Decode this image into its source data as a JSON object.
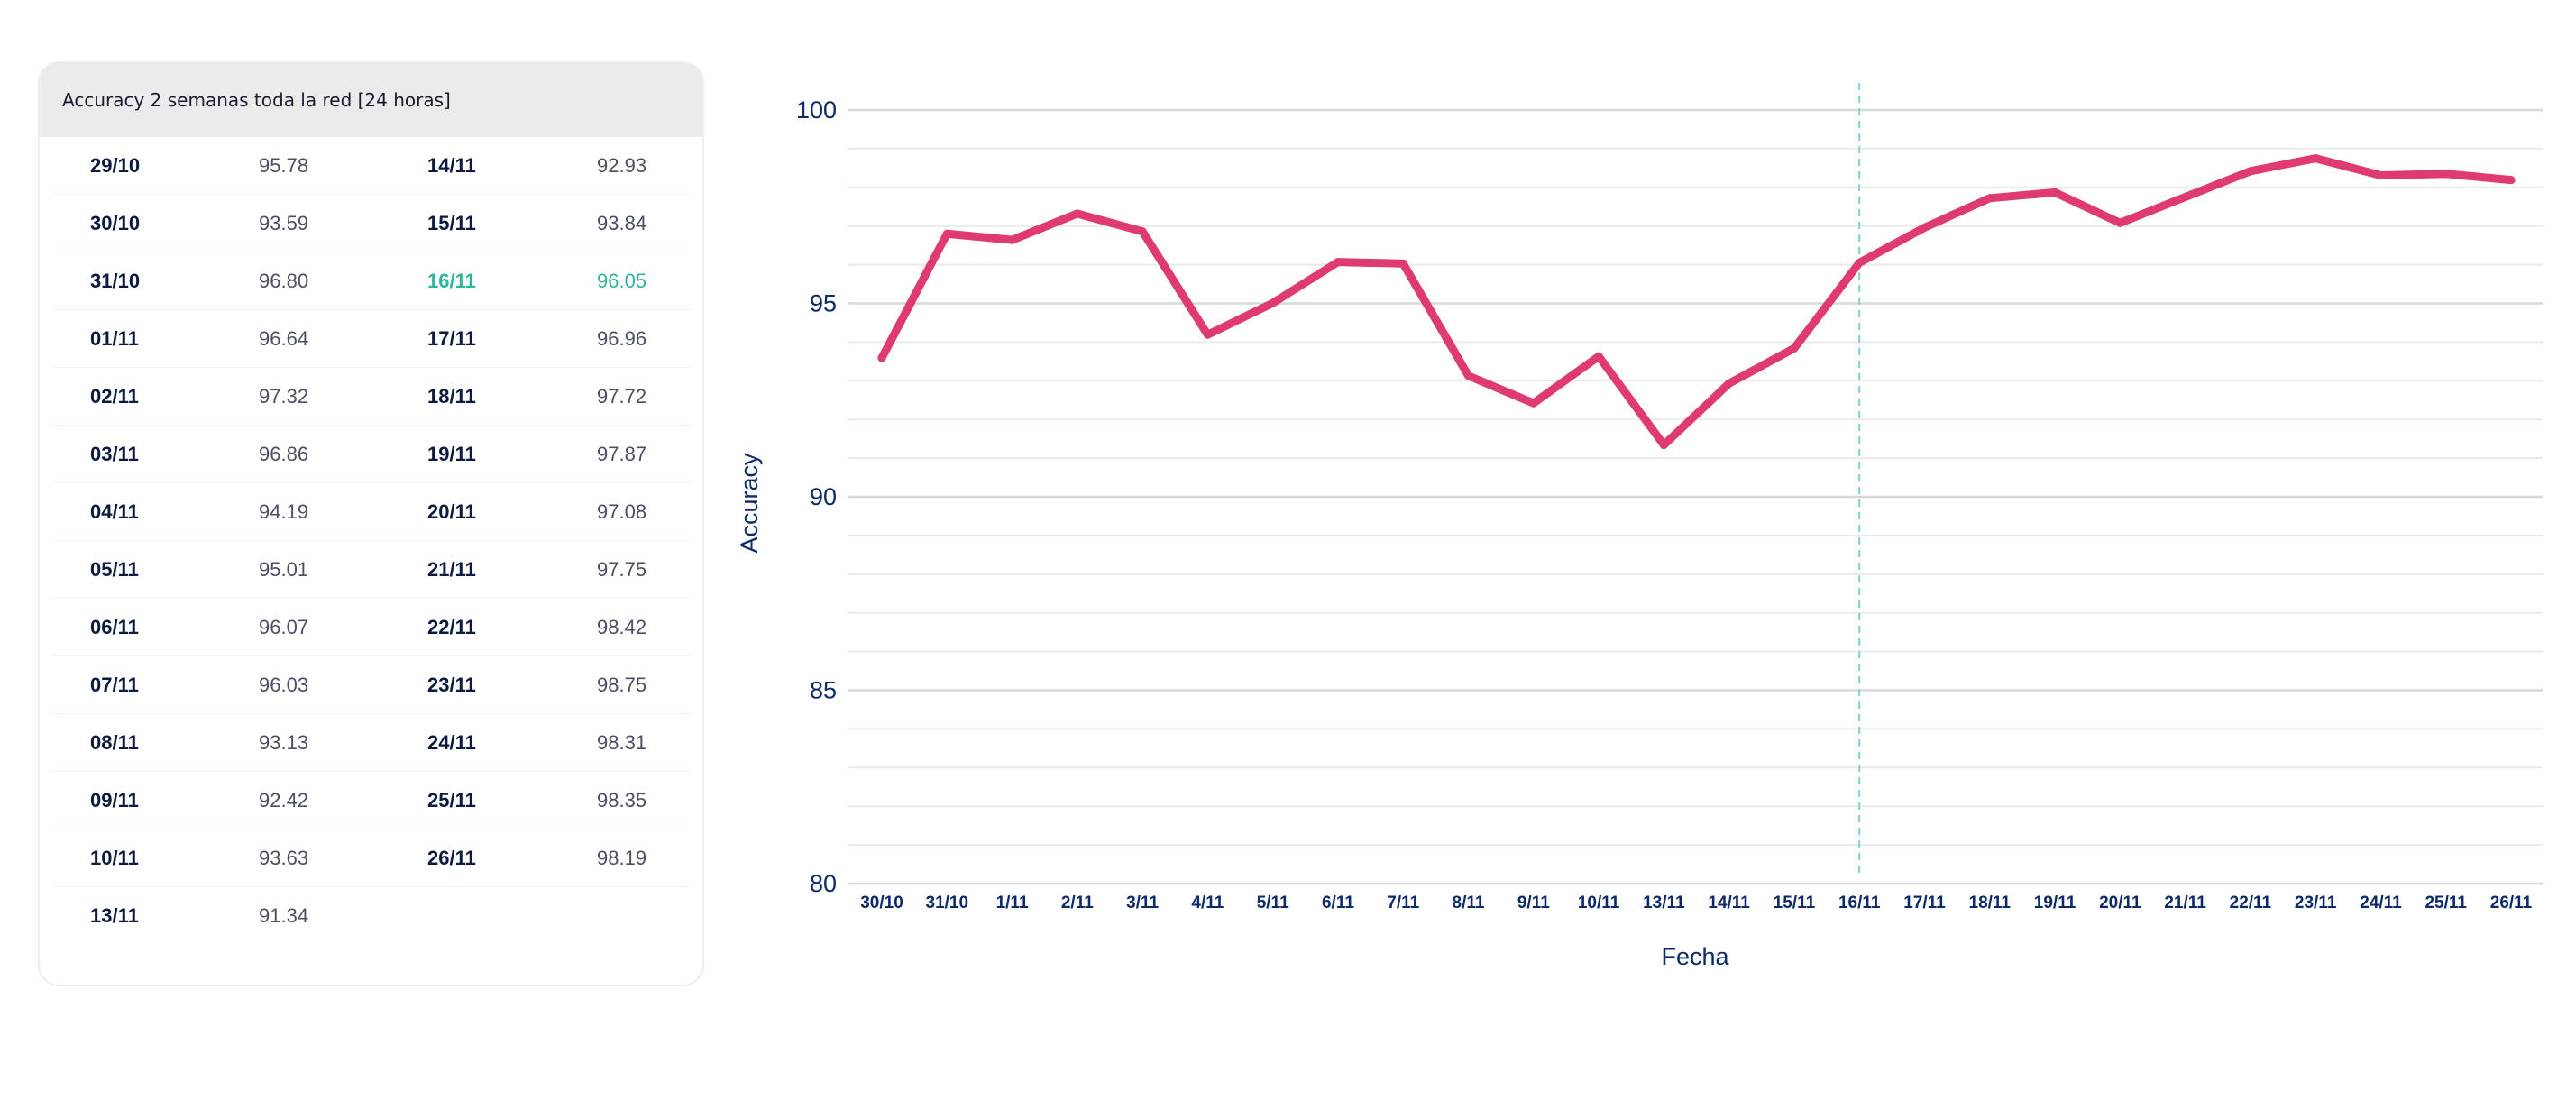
{
  "table": {
    "title": "Accuracy 2 semanas toda la red [24 horas]",
    "highlight_date": "16/11",
    "rows": [
      [
        {
          "date": "29/10",
          "value": "95.78"
        },
        {
          "date": "14/11",
          "value": "92.93"
        }
      ],
      [
        {
          "date": "30/10",
          "value": "93.59"
        },
        {
          "date": "15/11",
          "value": "93.84"
        }
      ],
      [
        {
          "date": "31/10",
          "value": "96.80"
        },
        {
          "date": "16/11",
          "value": "96.05"
        }
      ],
      [
        {
          "date": "01/11",
          "value": "96.64"
        },
        {
          "date": "17/11",
          "value": "96.96"
        }
      ],
      [
        {
          "date": "02/11",
          "value": "97.32"
        },
        {
          "date": "18/11",
          "value": "97.72"
        }
      ],
      [
        {
          "date": "03/11",
          "value": "96.86"
        },
        {
          "date": "19/11",
          "value": "97.87"
        }
      ],
      [
        {
          "date": "04/11",
          "value": "94.19"
        },
        {
          "date": "20/11",
          "value": "97.08"
        }
      ],
      [
        {
          "date": "05/11",
          "value": "95.01"
        },
        {
          "date": "21/11",
          "value": "97.75"
        }
      ],
      [
        {
          "date": "06/11",
          "value": "96.07"
        },
        {
          "date": "22/11",
          "value": "98.42"
        }
      ],
      [
        {
          "date": "07/11",
          "value": "96.03"
        },
        {
          "date": "23/11",
          "value": "98.75"
        }
      ],
      [
        {
          "date": "08/11",
          "value": "93.13"
        },
        {
          "date": "24/11",
          "value": "98.31"
        }
      ],
      [
        {
          "date": "09/11",
          "value": "92.42"
        },
        {
          "date": "25/11",
          "value": "98.35"
        }
      ],
      [
        {
          "date": "10/11",
          "value": "93.63"
        },
        {
          "date": "26/11",
          "value": "98.19"
        }
      ],
      [
        {
          "date": "13/11",
          "value": "91.34"
        },
        {
          "date": "",
          "value": ""
        }
      ]
    ]
  },
  "chart_data": {
    "type": "line",
    "xlabel": "Fecha",
    "ylabel": "Accuracy",
    "ylim": [
      80,
      100
    ],
    "yticks": [
      80,
      85,
      90,
      95,
      100
    ],
    "grid": true,
    "x": [
      "30/10",
      "31/10",
      "1/11",
      "2/11",
      "3/11",
      "4/11",
      "5/11",
      "6/11",
      "7/11",
      "8/11",
      "9/11",
      "10/11",
      "13/11",
      "14/11",
      "15/11",
      "16/11",
      "17/11",
      "18/11",
      "19/11",
      "20/11",
      "21/11",
      "22/11",
      "23/11",
      "24/11",
      "25/11",
      "26/11"
    ],
    "values": [
      93.59,
      96.8,
      96.64,
      97.32,
      96.86,
      94.19,
      95.01,
      96.07,
      96.03,
      93.13,
      92.42,
      93.63,
      91.34,
      92.93,
      93.84,
      96.05,
      96.96,
      97.72,
      97.87,
      97.08,
      97.75,
      98.42,
      98.75,
      98.31,
      98.35,
      98.19
    ],
    "marker_x": "16/11",
    "colors": {
      "line": "#e03a72",
      "marker_line": "#7fd3c3",
      "axis_text": "#0b2a6b",
      "grid_major": "#d6d8dc",
      "grid_minor": "#e9eaec"
    }
  }
}
